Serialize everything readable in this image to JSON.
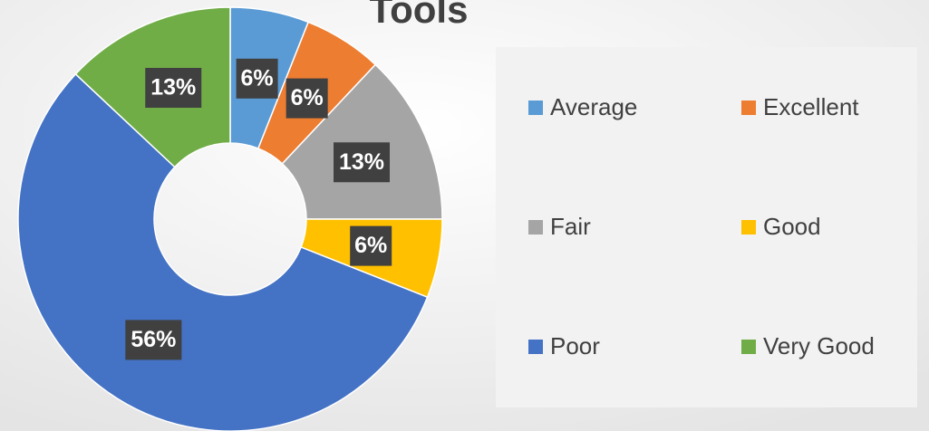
{
  "chart_data": {
    "type": "donut",
    "title": "Tools",
    "categories": [
      "Average",
      "Excellent",
      "Fair",
      "Good",
      "Poor",
      "Very Good"
    ],
    "values": [
      6,
      6,
      13,
      6,
      56,
      13
    ],
    "value_labels": [
      "6%",
      "6%",
      "13%",
      "6%",
      "56%",
      "13%"
    ],
    "colors": [
      "#5b9bd5",
      "#ed7d31",
      "#a5a5a5",
      "#ffc000",
      "#4472c4",
      "#70ad47"
    ],
    "legend": "right"
  }
}
